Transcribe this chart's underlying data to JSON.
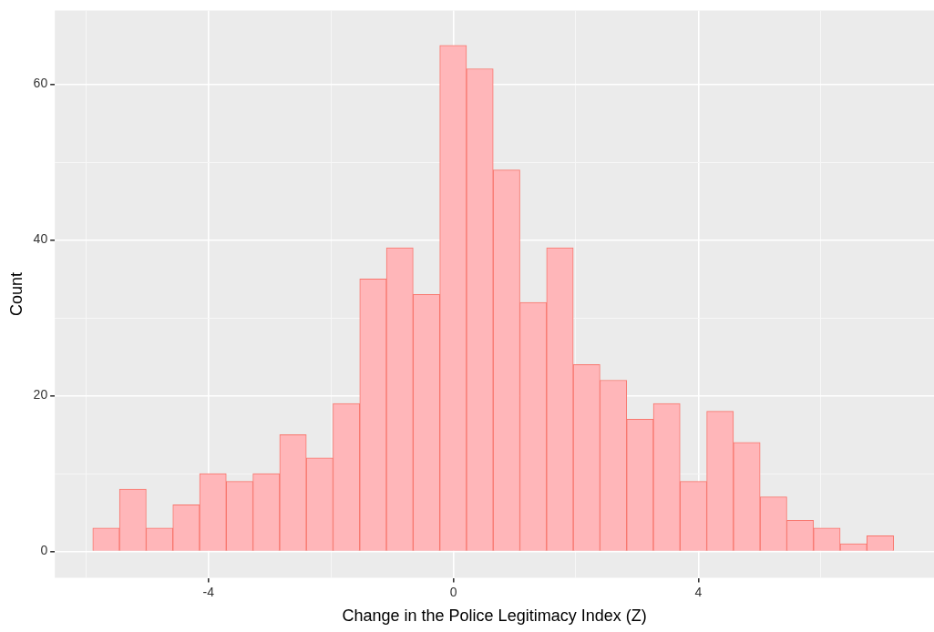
{
  "chart_data": {
    "type": "histogram",
    "xlabel": "Change in the Police Legitimacy Index (Z)",
    "ylabel": "Count",
    "bins": [
      -5.89,
      -5.454,
      -5.018,
      -4.582,
      -4.146,
      -3.71,
      -3.274,
      -2.838,
      -2.402,
      -1.966,
      -1.53,
      -1.094,
      -0.658,
      -0.222,
      0.214,
      0.65,
      1.086,
      1.522,
      1.958,
      2.394,
      2.83,
      3.266,
      3.702,
      4.138,
      4.574,
      5.01,
      5.446,
      5.882,
      6.318,
      6.754,
      7.19
    ],
    "values": [
      3,
      8,
      3,
      6,
      10,
      9,
      10,
      15,
      12,
      19,
      35,
      39,
      33,
      65,
      62,
      49,
      32,
      39,
      24,
      22,
      17,
      19,
      9,
      18,
      14,
      7,
      4,
      3,
      1,
      2
    ],
    "color": "#ffb6b9",
    "xlim": [
      -6.51,
      7.85
    ],
    "xticks": [
      {
        "value": -6,
        "label": null
      },
      -4,
      {
        "value": -2,
        "label": null
      },
      0,
      {
        "value": 2,
        "label": null
      },
      4,
      {
        "value": 6,
        "label": null
      }
    ],
    "ylim": [
      -3.4,
      69.5
    ],
    "yticks": [
      0,
      {
        "value": 10,
        "label": null
      },
      20,
      {
        "value": 30,
        "label": null
      },
      40,
      {
        "value": 50,
        "label": null
      },
      60
    ],
    "grid": true,
    "legend": false
  }
}
